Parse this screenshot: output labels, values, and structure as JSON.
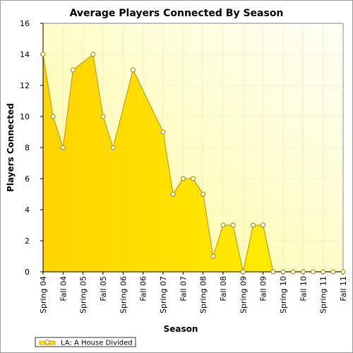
{
  "chart_data": {
    "type": "area",
    "title": "Average Players Connected By Season",
    "xlabel": "Season",
    "ylabel": "Players Connected",
    "ylim": [
      0,
      16
    ],
    "yticks": [
      0,
      2,
      4,
      6,
      8,
      10,
      12,
      14,
      16
    ],
    "grid": true,
    "legend_position": "bottom-left",
    "categories": [
      "Spring 04",
      "Fall 04",
      "Spring 05",
      "Fall 05",
      "Spring 06",
      "Fall 06",
      "Spring 07",
      "Fall 07",
      "Spring 08",
      "Fall 08",
      "Spring 09",
      "Fall 09",
      "Spring 10",
      "Fall 10",
      "Spring 11",
      "Fall 11"
    ],
    "series": [
      {
        "name": "LA: A House Divided",
        "color": "#ffdd00",
        "x": [
          0,
          0.5,
          1,
          1.5,
          2.5,
          3,
          3.5,
          4.5,
          6,
          6.5,
          7,
          7.5,
          8,
          8.5,
          9,
          9.5,
          10,
          10.5,
          11,
          11.5,
          12,
          12.5,
          13,
          13.5,
          14,
          14.5,
          15
        ],
        "values": [
          14,
          10,
          8,
          13,
          14,
          10,
          8,
          13,
          9,
          5,
          6,
          6,
          5,
          1,
          3,
          3,
          0,
          3,
          3,
          0,
          0,
          0,
          0,
          0,
          0,
          0,
          0
        ]
      }
    ]
  }
}
